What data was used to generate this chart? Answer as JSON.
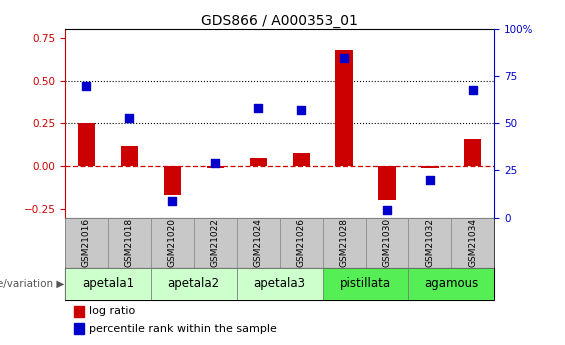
{
  "title": "GDS866 / A000353_01",
  "samples": [
    "GSM21016",
    "GSM21018",
    "GSM21020",
    "GSM21022",
    "GSM21024",
    "GSM21026",
    "GSM21028",
    "GSM21030",
    "GSM21032",
    "GSM21034"
  ],
  "log_ratio": [
    0.25,
    0.12,
    -0.17,
    -0.01,
    0.05,
    0.08,
    0.68,
    -0.2,
    -0.01,
    0.16
  ],
  "percentile_rank": [
    70,
    53,
    9,
    29,
    58,
    57,
    85,
    4,
    20,
    68
  ],
  "groups": [
    {
      "label": "apetala1",
      "start": 0,
      "end": 2,
      "color": "#ccffcc"
    },
    {
      "label": "apetala2",
      "start": 2,
      "end": 4,
      "color": "#ccffcc"
    },
    {
      "label": "apetala3",
      "start": 4,
      "end": 6,
      "color": "#ccffcc"
    },
    {
      "label": "pistillata",
      "start": 6,
      "end": 8,
      "color": "#55ee55"
    },
    {
      "label": "agamous",
      "start": 8,
      "end": 10,
      "color": "#55ee55"
    }
  ],
  "ylim_left": [
    -0.3,
    0.8
  ],
  "ylim_right": [
    0,
    100
  ],
  "yticks_left": [
    -0.25,
    0.0,
    0.25,
    0.5,
    0.75
  ],
  "yticks_right": [
    0,
    25,
    50,
    75,
    100
  ],
  "hlines": [
    0.25,
    0.5
  ],
  "bar_color": "#cc0000",
  "dot_color": "#0000cc",
  "zero_line_color": "#cc0000",
  "bar_width": 0.4,
  "dot_size": 28,
  "background_color": "#ffffff",
  "tick_fontsize": 7.5,
  "title_fontsize": 10,
  "group_label_fontsize": 8.5,
  "sample_fontsize": 6.5,
  "legend_fontsize": 8
}
